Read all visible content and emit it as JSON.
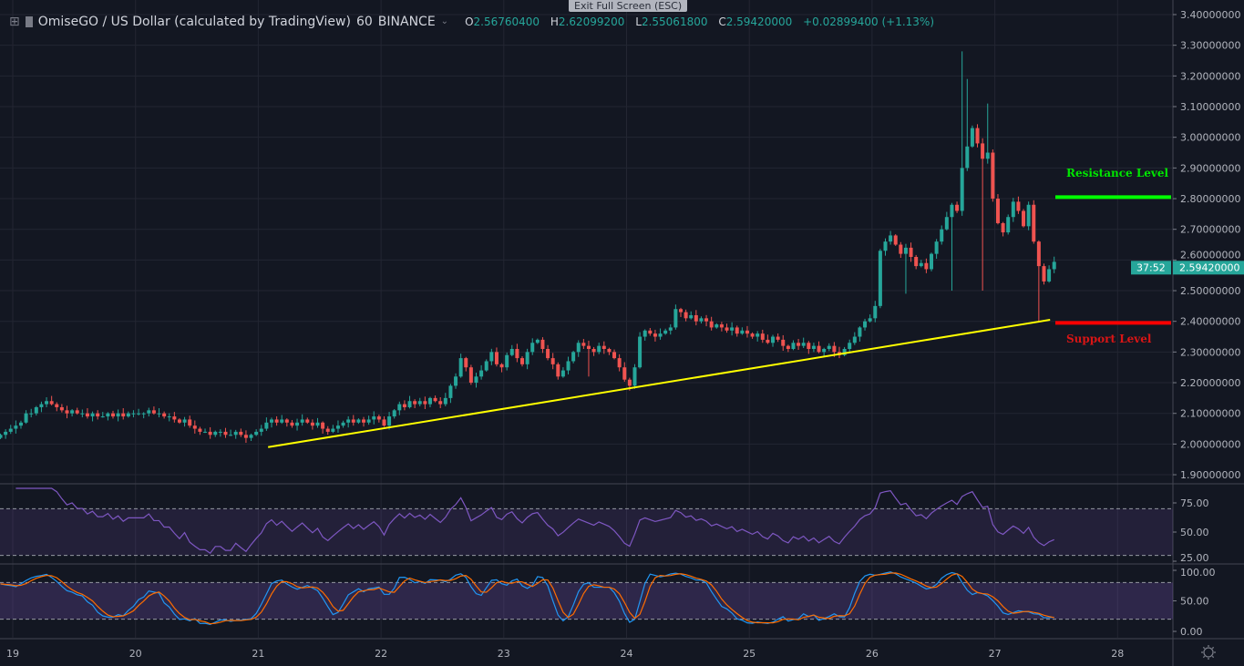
{
  "header": {
    "symbol": "OmiseGO / US Dollar (calculated by TradingView)",
    "interval": "60",
    "exchange": "BINANCE",
    "o_label": "O",
    "o": "2.56760400",
    "h_label": "H",
    "h": "2.62099200",
    "l_label": "L",
    "l": "2.55061800",
    "c_label": "C",
    "c": "2.59420000",
    "change": "+0.02899400 (+1.13%)"
  },
  "tooltip": "Exit Full Screen (ESC)",
  "annotations": {
    "resistance_label": "Resistance Level",
    "support_label": "Support Level",
    "resistance_color": "#00ff00",
    "support_color": "#ff0000",
    "trendline_color": "#ffff00"
  },
  "colors": {
    "background": "#131722",
    "up": "#26a69a",
    "down": "#ef5350",
    "grid": "#232632",
    "rsi": "#7e57c2",
    "stoch_k": "#2196f3",
    "stoch_d": "#ff6d00"
  },
  "chart_data": {
    "type": "candlestick",
    "price_axis": {
      "ticks": [
        "3.40000000",
        "3.30000000",
        "3.20000000",
        "3.10000000",
        "3.00000000",
        "2.90000000",
        "2.80000000",
        "2.70000000",
        "2.60000000",
        "2.50000000",
        "2.40000000",
        "2.30000000",
        "2.20000000",
        "2.10000000",
        "2.00000000",
        "1.90000000"
      ],
      "ylim": [
        1.9,
        3.4
      ],
      "last_price": "2.59420000",
      "countdown": "37:52"
    },
    "time_axis": {
      "ticks": [
        "19",
        "20",
        "21",
        "22",
        "23",
        "24",
        "25",
        "26",
        "27",
        "28"
      ]
    },
    "interval_hours": 1,
    "start_day": 18.9,
    "closes": [
      2.03,
      2.04,
      2.05,
      2.06,
      2.07,
      2.1,
      2.1,
      2.12,
      2.13,
      2.14,
      2.13,
      2.12,
      2.11,
      2.1,
      2.11,
      2.1,
      2.1,
      2.09,
      2.1,
      2.09,
      2.09,
      2.1,
      2.09,
      2.1,
      2.09,
      2.1,
      2.1,
      2.1,
      2.1,
      2.11,
      2.1,
      2.1,
      2.09,
      2.09,
      2.08,
      2.07,
      2.08,
      2.06,
      2.05,
      2.04,
      2.04,
      2.03,
      2.04,
      2.04,
      2.03,
      2.03,
      2.04,
      2.03,
      2.02,
      2.03,
      2.04,
      2.05,
      2.07,
      2.08,
      2.07,
      2.08,
      2.07,
      2.06,
      2.07,
      2.08,
      2.07,
      2.06,
      2.07,
      2.05,
      2.04,
      2.05,
      2.06,
      2.07,
      2.08,
      2.07,
      2.08,
      2.07,
      2.08,
      2.09,
      2.08,
      2.06,
      2.09,
      2.11,
      2.13,
      2.12,
      2.14,
      2.13,
      2.14,
      2.13,
      2.15,
      2.14,
      2.13,
      2.15,
      2.19,
      2.22,
      2.28,
      2.25,
      2.2,
      2.22,
      2.24,
      2.27,
      2.3,
      2.26,
      2.25,
      2.29,
      2.31,
      2.28,
      2.26,
      2.3,
      2.33,
      2.34,
      2.31,
      2.28,
      2.26,
      2.22,
      2.24,
      2.27,
      2.3,
      2.33,
      2.32,
      2.31,
      2.3,
      2.32,
      2.31,
      2.3,
      2.28,
      2.25,
      2.21,
      2.19,
      2.25,
      2.35,
      2.37,
      2.36,
      2.35,
      2.36,
      2.37,
      2.38,
      2.44,
      2.43,
      2.41,
      2.42,
      2.4,
      2.41,
      2.4,
      2.38,
      2.39,
      2.38,
      2.37,
      2.38,
      2.36,
      2.37,
      2.36,
      2.35,
      2.36,
      2.34,
      2.33,
      2.35,
      2.34,
      2.32,
      2.31,
      2.33,
      2.32,
      2.33,
      2.31,
      2.32,
      2.3,
      2.31,
      2.32,
      2.3,
      2.29,
      2.31,
      2.33,
      2.35,
      2.38,
      2.4,
      2.41,
      2.45,
      2.63,
      2.66,
      2.68,
      2.65,
      2.62,
      2.64,
      2.61,
      2.58,
      2.59,
      2.57,
      2.62,
      2.66,
      2.7,
      2.74,
      2.78,
      2.76,
      2.9,
      2.97,
      3.03,
      2.98,
      2.93,
      2.95,
      2.8,
      2.72,
      2.69,
      2.74,
      2.79,
      2.76,
      2.71,
      2.78,
      2.66,
      2.58,
      2.53,
      2.57,
      2.594
    ],
    "extremes": [
      {
        "i": 188,
        "high": 3.28
      },
      {
        "i": 189,
        "high": 3.19
      },
      {
        "i": 192,
        "low": 2.5
      },
      {
        "i": 193,
        "high": 3.11
      },
      {
        "i": 203,
        "low": 2.4
      },
      {
        "i": 177,
        "low": 2.49
      },
      {
        "i": 115,
        "low": 2.22
      },
      {
        "i": 186,
        "low": 2.5
      }
    ],
    "trendline": {
      "from": [
        21.08,
        1.99
      ],
      "to": [
        27.45,
        2.405
      ]
    },
    "resistance": 2.805,
    "support": 2.395,
    "rsi": {
      "ticks": [
        "75.00",
        "50.00",
        "25.00"
      ],
      "band": [
        70,
        30
      ],
      "period": 14
    },
    "stoch": {
      "ticks": [
        "100.00",
        "50.00",
        "0.00"
      ],
      "band": [
        80,
        20
      ],
      "period": 14
    }
  }
}
